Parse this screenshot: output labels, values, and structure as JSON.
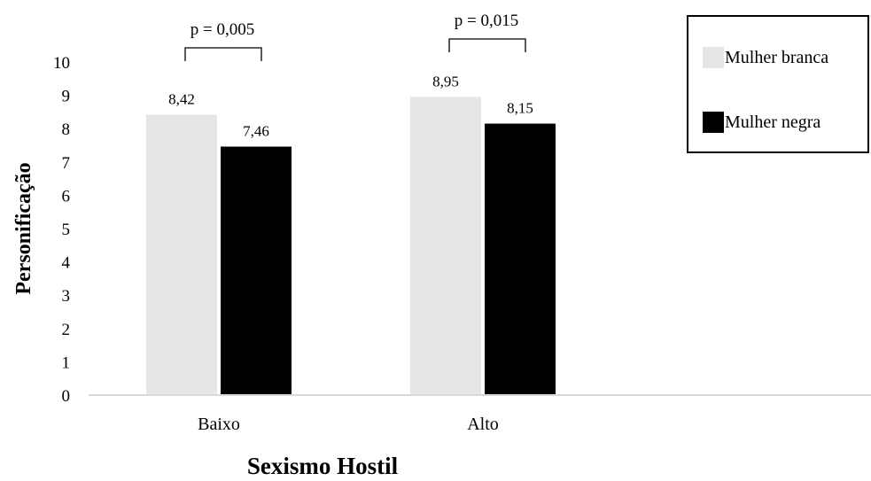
{
  "chart_data": {
    "type": "bar",
    "xlabel": "Sexismo Hostil",
    "ylabel": "Personificação",
    "ylim": [
      0,
      10
    ],
    "yticks": [
      "0",
      "1",
      "2",
      "3",
      "4",
      "5",
      "6",
      "7",
      "8",
      "9",
      "10"
    ],
    "categories": [
      "Baixo",
      "Alto"
    ],
    "series": [
      {
        "name": "Mulher branca",
        "color": "#e6e6e6",
        "values": [
          8.42,
          8.95
        ],
        "labels": [
          "8,42",
          "8,95"
        ]
      },
      {
        "name": "Mulher negra",
        "color": "#000000",
        "values": [
          7.46,
          8.15
        ],
        "labels": [
          "7,46",
          "8,15"
        ]
      }
    ],
    "annotations": [
      {
        "category": "Baixo",
        "text": "p = 0,005"
      },
      {
        "category": "Alto",
        "text": "p = 0,015"
      }
    ],
    "legend": "top-right",
    "grid": false
  }
}
